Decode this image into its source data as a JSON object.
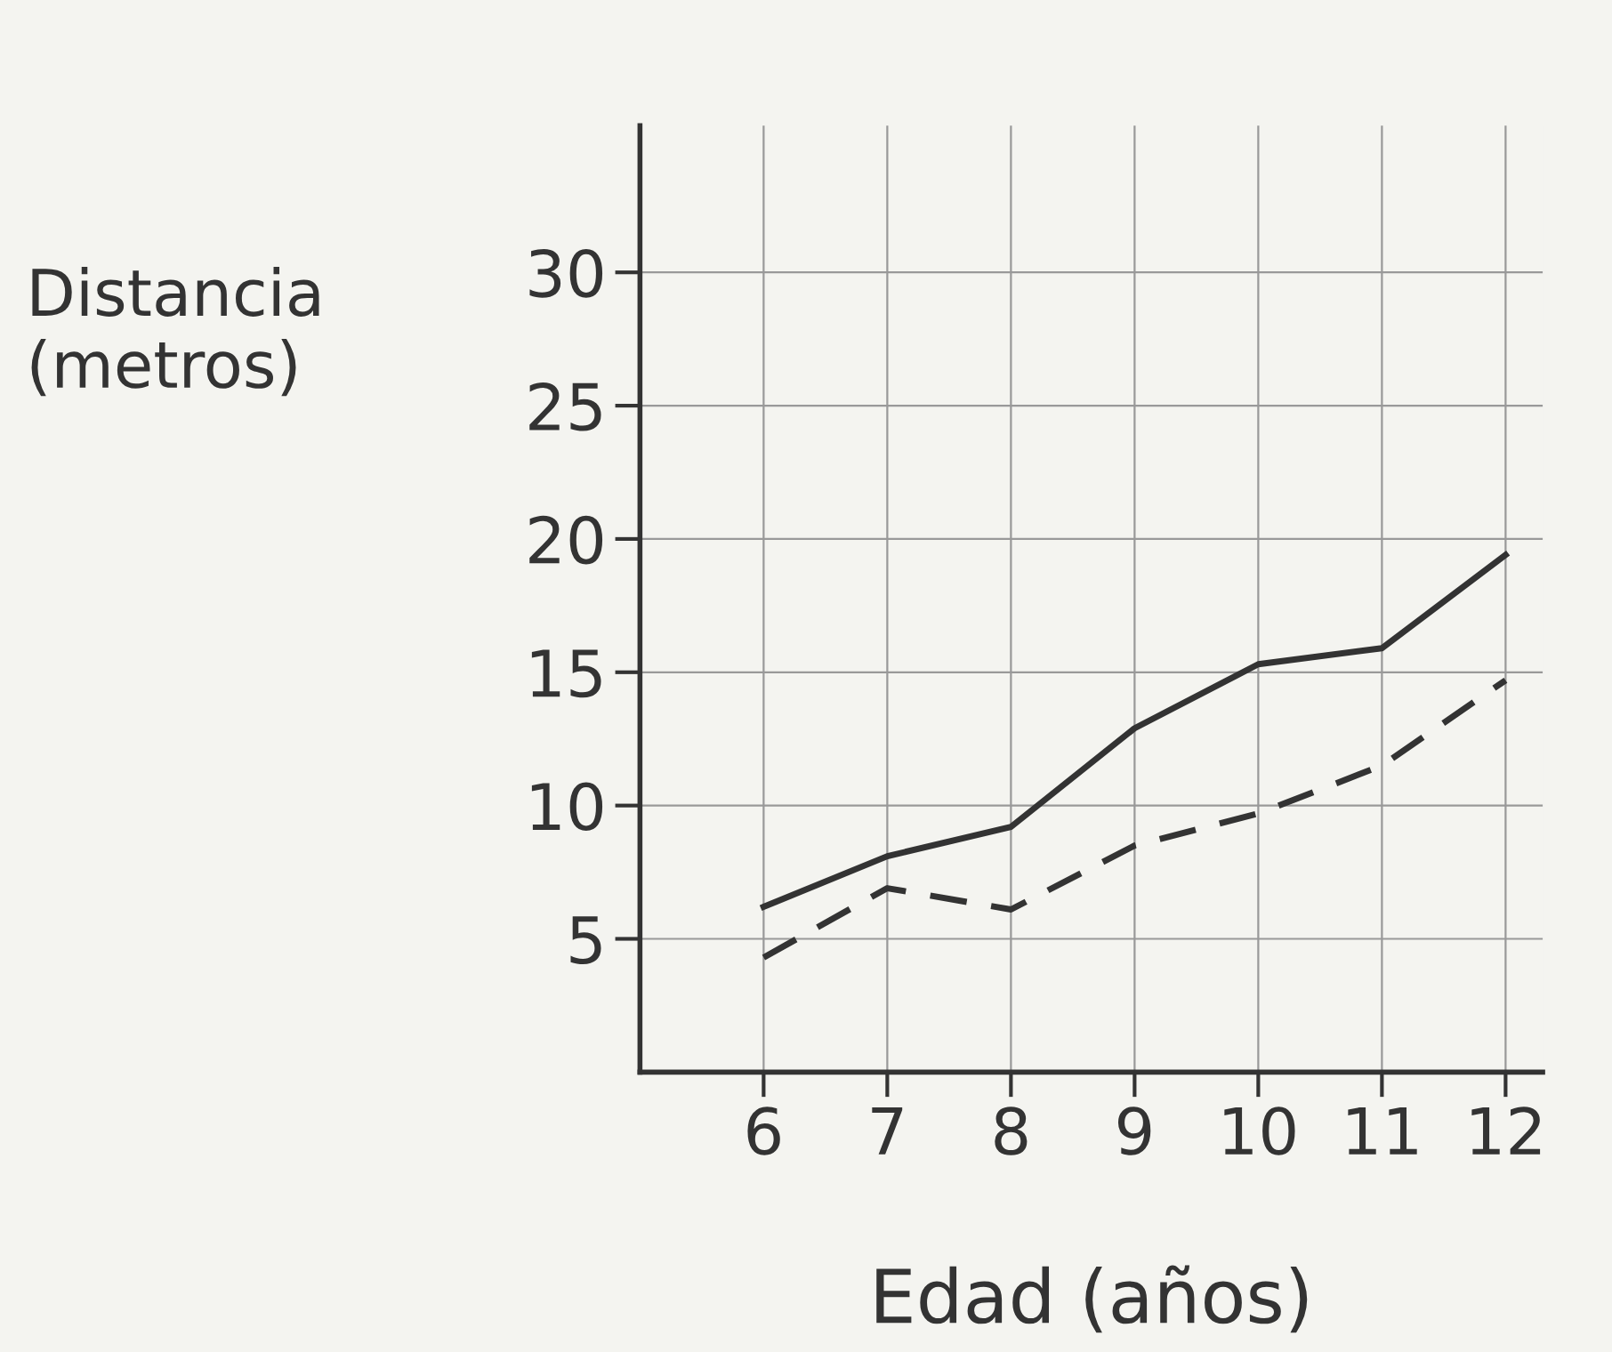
{
  "chart_data": {
    "type": "line",
    "xlabel": "Edad (años)",
    "ylabel": "Distancia\n(metros)",
    "x": [
      6,
      7,
      8,
      9,
      10,
      11,
      12
    ],
    "series": [
      {
        "color": "#333333",
        "line_style": "solid",
        "values": [
          6.2,
          8.1,
          9.2,
          12.9,
          15.3,
          15.9,
          19.4
        ]
      },
      {
        "color": "#333333",
        "line_style": "dashed",
        "values": [
          4.3,
          6.9,
          6.1,
          8.5,
          9.7,
          11.5,
          14.7
        ]
      }
    ],
    "xlim": [
      5,
      12.3
    ],
    "ylim": [
      0,
      35.5
    ],
    "xticks": [
      6,
      7,
      8,
      9,
      10,
      11,
      12
    ],
    "yticks": [
      5,
      10,
      15,
      20,
      25,
      30
    ],
    "grid": true,
    "marker": "none",
    "legend": false
  }
}
